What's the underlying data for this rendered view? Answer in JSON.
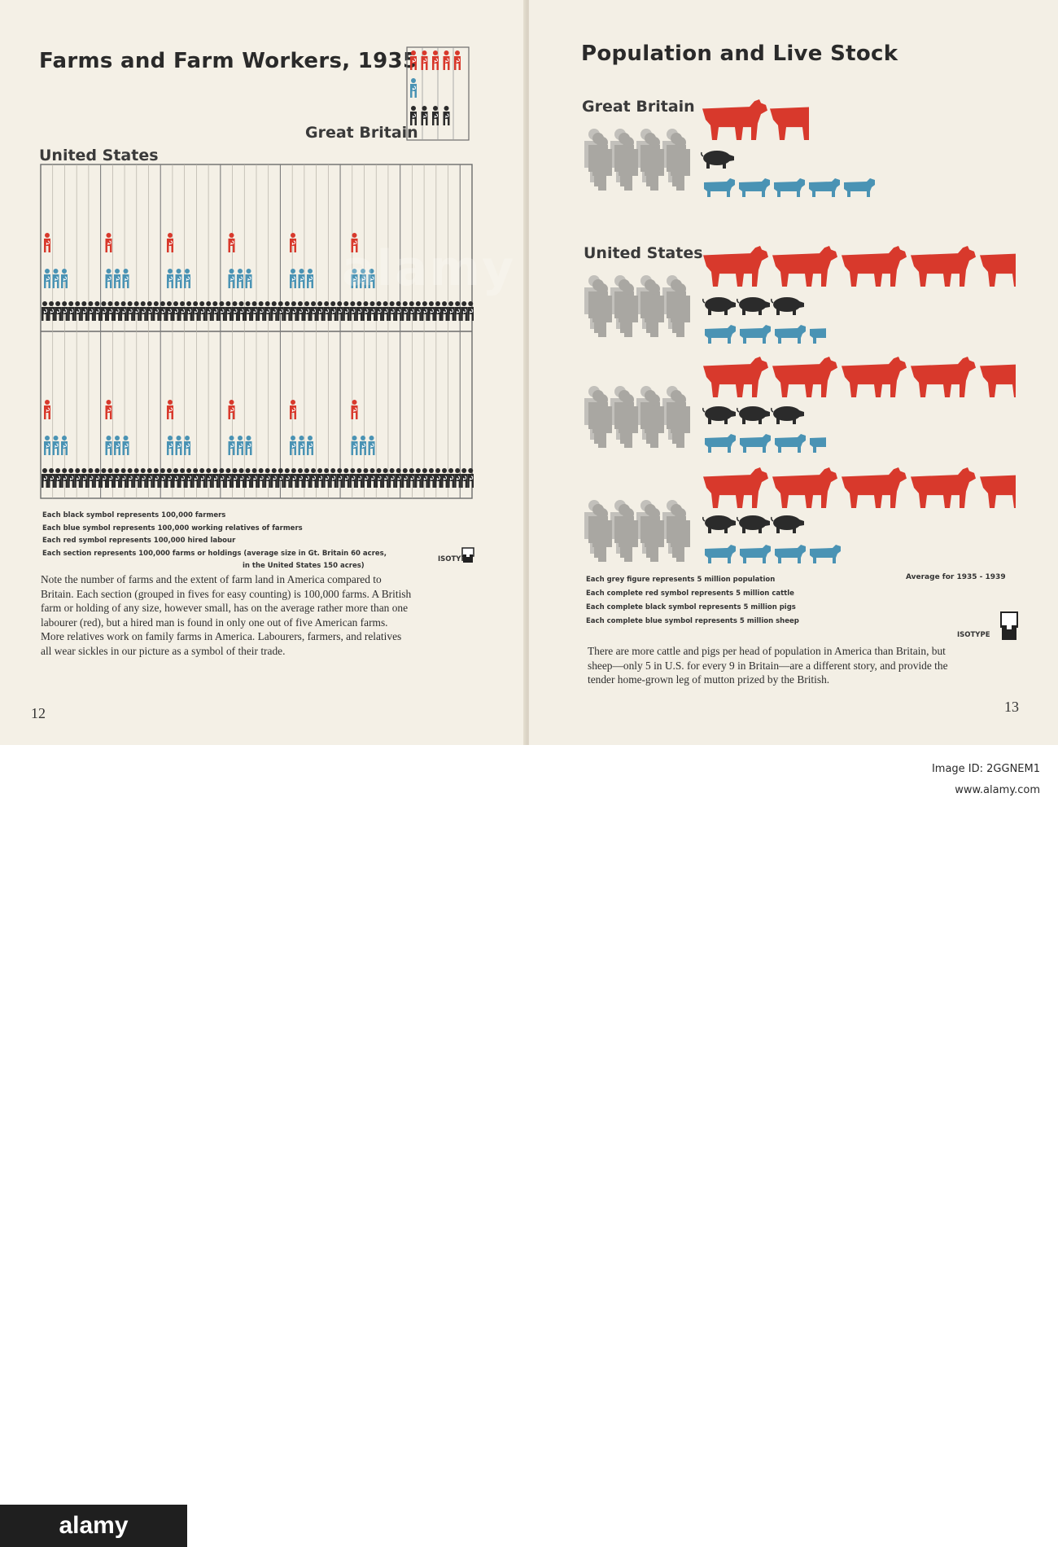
{
  "left_page": {
    "title": "Farms and Farm Workers, 1935",
    "gb_label": "Great Britain",
    "us_label": "United States",
    "legend": [
      "Each black symbol represents 100,000 farmers",
      "Each blue symbol represents 100,000 working relatives of farmers",
      "Each red symbol represents 100,000 hired labour",
      "Each section represents 100,000 farms or holdings (average size in Gt. Britain 60 acres,",
      "in the United States 150 acres)"
    ],
    "isotype": "ISOTYPE",
    "body": "Note the number of farms and the extent of farm land in America compared to Britain. Each section (grouped in fives for easy counting) is 100,000 farms. A British farm or holding of any size, however small, has on the average rather more than one labourer (red), but a hired man is found in only one out of five American farms. More relatives work on family farms in America. Labourers, farmers, and relatives all wear sickles in our picture as a symbol of their trade.",
    "page_number": "12"
  },
  "right_page": {
    "title": "Population and Live Stock",
    "gb_label": "Great Britain",
    "us_label": "United States",
    "legend": [
      "Each grey figure represents 5 million population",
      "Each complete red symbol represents 5 million cattle",
      "Each complete black symbol represents 5 million pigs",
      "Each complete blue symbol represents 5 million sheep"
    ],
    "average_label": "Average for 1935 - 1939",
    "isotype": "ISOTYPE",
    "body": "There are more cattle and pigs per head of population in America than Britain, but sheep—only 5 in U.S. for every 9 in Britain—are a different story, and provide the tender home-grown leg of mutton prized by the British.",
    "page_number": "13"
  },
  "watermark": {
    "logo": "alamy",
    "center": "alamy",
    "image_id": "Image ID: 2GGNEM1",
    "site": "www.alamy.com"
  },
  "colors": {
    "red": "#d8392c",
    "blue": "#4a93b4",
    "black": "#2b2b2b",
    "grey": "#a9a7a2",
    "paper": "#f4f0e6"
  },
  "chart_data": [
    {
      "type": "table",
      "title": "Farms and Farm Workers, 1935",
      "units": "symbols; each symbol = 100,000 persons; each section = 100,000 farms",
      "categories": [
        "Great Britain",
        "United States"
      ],
      "series": [
        {
          "name": "hired labour",
          "values": [
            5.5,
            12
          ]
        },
        {
          "name": "working relatives of farmers",
          "values": [
            1,
            36
          ]
        },
        {
          "name": "farmers",
          "values": [
            4,
            66
          ]
        }
      ],
      "sections_farms": [
        4,
        66
      ]
    },
    {
      "type": "table",
      "title": "Population and Live Stock",
      "units": "symbols; each symbol = 5 million",
      "categories": [
        "Great Britain",
        "United States"
      ],
      "series": [
        {
          "name": "population",
          "values": [
            9,
            25.5
          ]
        },
        {
          "name": "cattle",
          "values": [
            1.6,
            13.6
          ]
        },
        {
          "name": "pigs",
          "values": [
            1,
            9
          ]
        },
        {
          "name": "sheep",
          "values": [
            5,
            10.5
          ]
        }
      ]
    }
  ]
}
